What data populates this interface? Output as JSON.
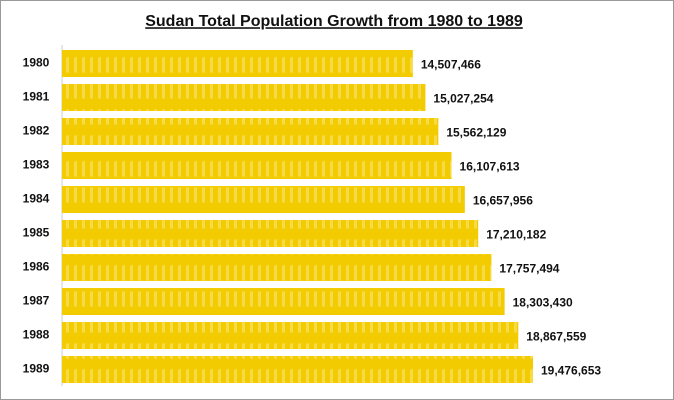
{
  "chart_data": {
    "type": "barh",
    "title": "Sudan Total Population Growth from 1980 to 1989",
    "categories": [
      "1980",
      "1981",
      "1982",
      "1983",
      "1984",
      "1985",
      "1986",
      "1987",
      "1988",
      "1989"
    ],
    "values": [
      14507466,
      15027254,
      15562129,
      16107613,
      16657956,
      17210182,
      17757494,
      18303430,
      18867559,
      19476653
    ],
    "value_labels": [
      "14,507,466",
      "15,027,254",
      "15,562,129",
      "16,107,613",
      "16,657,956",
      "17,210,182",
      "17,757,494",
      "18,303,430",
      "18,867,559",
      "19,476,653"
    ],
    "color": "#f2cc00"
  }
}
